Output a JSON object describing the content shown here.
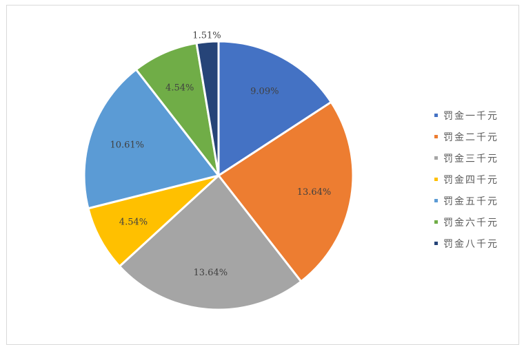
{
  "chart_data": {
    "type": "pie",
    "title": "",
    "start_angle_deg": 0,
    "direction": "clockwise",
    "categories": [
      "罚金一千元",
      "罚金二千元",
      "罚金三千元",
      "罚金四千元",
      "罚金五千元",
      "罚金六千元",
      "罚金八千元"
    ],
    "values": [
      9.09,
      13.64,
      13.64,
      4.54,
      10.61,
      4.54,
      1.51
    ],
    "labels": [
      "9.09%",
      "13.64%",
      "13.64%",
      "4.54%",
      "10.61%",
      "4.54%",
      "1.51%"
    ],
    "colors": [
      "#4472C4",
      "#ED7D31",
      "#A5A5A5",
      "#FFC000",
      "#5B9BD5",
      "#70AD47",
      "#264478"
    ],
    "legend_position": "right"
  },
  "legend": {
    "items": [
      {
        "label": "罚金一千元",
        "color": "#4472C4"
      },
      {
        "label": "罚金二千元",
        "color": "#ED7D31"
      },
      {
        "label": "罚金三千元",
        "color": "#A5A5A5"
      },
      {
        "label": "罚金四千元",
        "color": "#FFC000"
      },
      {
        "label": "罚金五千元",
        "color": "#5B9BD5"
      },
      {
        "label": "罚金六千元",
        "color": "#70AD47"
      },
      {
        "label": "罚金八千元",
        "color": "#264478"
      }
    ]
  }
}
